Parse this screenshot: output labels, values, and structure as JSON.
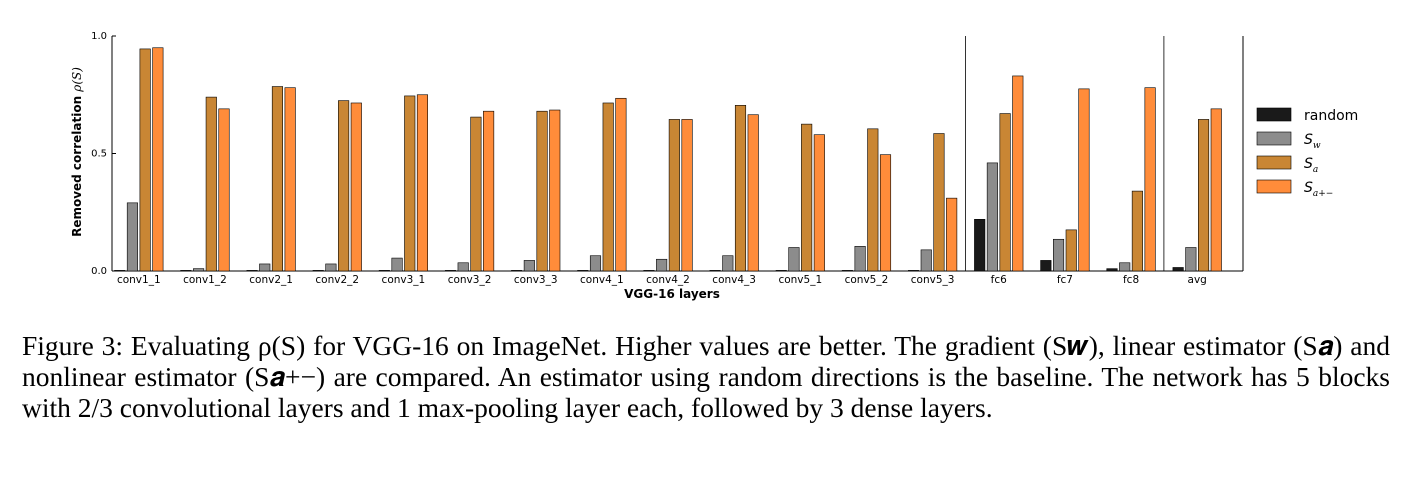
{
  "chart_data": {
    "type": "bar",
    "xlabel": "VGG-16 layers",
    "ylabel": "Removed correlation ρ(S)",
    "ylim": [
      0,
      1.0
    ],
    "yticks": [
      "0.0",
      "0.5",
      "1.0"
    ],
    "grid": false,
    "legend_position": "right",
    "categories": [
      "conv1_1",
      "conv1_2",
      "conv2_1",
      "conv2_2",
      "conv3_1",
      "conv3_2",
      "conv3_3",
      "conv4_1",
      "conv4_2",
      "conv4_3",
      "conv5_1",
      "conv5_2",
      "conv5_3",
      "fc6",
      "fc7",
      "fc8",
      "avg"
    ],
    "series": [
      {
        "name": "random",
        "color": "#1a1a1a",
        "values": [
          0.0,
          0.0,
          0.0,
          0.0,
          0.0,
          0.0,
          0.0,
          0.0,
          0.0,
          0.0,
          0.0,
          0.0,
          0.0,
          0.22,
          0.045,
          0.01,
          0.015
        ]
      },
      {
        "name": "S_w",
        "color": "#8c8c8c",
        "values": [
          0.29,
          0.01,
          0.03,
          0.03,
          0.055,
          0.035,
          0.045,
          0.065,
          0.05,
          0.065,
          0.1,
          0.105,
          0.09,
          0.46,
          0.135,
          0.035,
          0.1
        ]
      },
      {
        "name": "S_a",
        "color": "#c98634",
        "values": [
          0.945,
          0.74,
          0.785,
          0.725,
          0.745,
          0.655,
          0.68,
          0.715,
          0.645,
          0.705,
          0.625,
          0.605,
          0.585,
          0.67,
          0.175,
          0.34,
          0.645
        ]
      },
      {
        "name": "S_a+-",
        "color": "#ff8c3a",
        "values": [
          0.95,
          0.69,
          0.78,
          0.715,
          0.75,
          0.68,
          0.685,
          0.735,
          0.645,
          0.665,
          0.58,
          0.495,
          0.31,
          0.83,
          0.775,
          0.78,
          0.69
        ]
      }
    ],
    "legend": [
      {
        "text": "random",
        "math": false
      },
      {
        "text": "S",
        "sub": "w",
        "math": true
      },
      {
        "text": "S",
        "sub": "a",
        "math": true
      },
      {
        "text": "S",
        "sub": "a+−",
        "math": true
      }
    ],
    "group_separators_after": [
      "conv5_3",
      "fc8"
    ]
  },
  "caption": {
    "text": "Figure 3: Evaluating ρ(S) for VGG-16 on ImageNet. Higher values are better. The gradient (S𝒘), linear estimator (S𝒂) and nonlinear estimator (S𝒂+−) are compared. An estimator using random directions is the baseline. The network has 5 blocks with 2/3 convolutional layers and 1 max-pooling layer each, followed by 3 dense layers."
  }
}
